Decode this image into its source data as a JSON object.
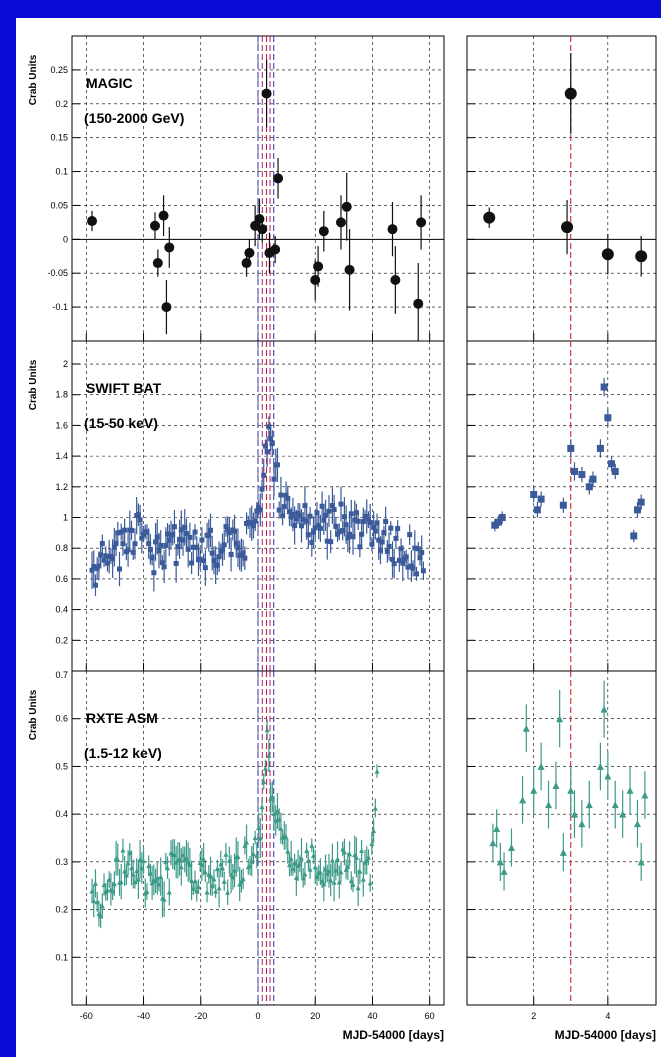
{
  "colors": {
    "frame": "#0a0ad6",
    "magic": "#111111",
    "swift": "#3a5a9a",
    "rxte": "#3c9a88",
    "marker_red": "#c41616",
    "marker_blue": "#3030a0",
    "marker_magenta": "#a02080"
  },
  "chart_data": {
    "type": "scatter",
    "shared_ylabel": "Crab Units",
    "xlabel": "MJD-54000 [days]",
    "grid": true,
    "columns": [
      {
        "id": "left",
        "xlim": [
          -65,
          65
        ],
        "xticks": [
          -60,
          -40,
          -20,
          0,
          20,
          40,
          60
        ]
      },
      {
        "id": "right",
        "xlim": [
          0.2,
          5.3
        ],
        "xticks": [
          2,
          4
        ]
      }
    ],
    "vlines": {
      "left": [
        {
          "x": 0,
          "color": "marker_blue"
        },
        {
          "x": 1.5,
          "color": "marker_magenta"
        },
        {
          "x": 3.0,
          "color": "marker_red"
        },
        {
          "x": 4.2,
          "color": "marker_magenta"
        },
        {
          "x": 5.5,
          "color": "marker_blue"
        }
      ],
      "right": [
        {
          "x": 3.0,
          "color": "marker_red"
        }
      ]
    },
    "panels": [
      {
        "id": "magic",
        "title": "MAGIC",
        "subtitle": "(150-2000 GeV)",
        "ylim": [
          -0.15,
          0.3
        ],
        "yticks": [
          -0.1,
          -0.05,
          0,
          0.05,
          0.1,
          0.15,
          0.2,
          0.25
        ],
        "ytick_labels": [
          "-0.1",
          "-0.05",
          "0",
          "0.05",
          "0.1",
          "0.15",
          "0.2",
          "0.25"
        ],
        "zero_line": true,
        "marker": "dot",
        "color": "magic",
        "left_points": [
          [
            -58,
            0.027,
            0.015
          ],
          [
            -36,
            0.02,
            0.02
          ],
          [
            -35,
            -0.035,
            0.02
          ],
          [
            -33,
            0.035,
            0.03
          ],
          [
            -32,
            -0.1,
            0.04
          ],
          [
            -31,
            -0.012,
            0.03
          ],
          [
            -4,
            -0.035,
            0.02
          ],
          [
            -3,
            -0.02,
            0.02
          ],
          [
            -1,
            0.02,
            0.03
          ],
          [
            0.5,
            0.03,
            0.03
          ],
          [
            1.5,
            0.015,
            0.02
          ],
          [
            3,
            0.215,
            0.05
          ],
          [
            4,
            -0.02,
            0.03
          ],
          [
            6,
            -0.015,
            0.02
          ],
          [
            7,
            0.09,
            0.03
          ],
          [
            20,
            -0.06,
            0.03
          ],
          [
            21,
            -0.04,
            0.03
          ],
          [
            23,
            0.012,
            0.03
          ],
          [
            29,
            0.025,
            0.04
          ],
          [
            31,
            0.048,
            0.05
          ],
          [
            32,
            -0.045,
            0.06
          ],
          [
            47,
            0.015,
            0.04
          ],
          [
            48,
            -0.06,
            0.05
          ],
          [
            56,
            -0.095,
            0.06
          ],
          [
            57,
            0.025,
            0.04
          ]
        ],
        "right_points": [
          [
            0.8,
            0.032,
            0.015
          ],
          [
            2.9,
            0.018,
            0.04
          ],
          [
            3.0,
            0.215,
            0.06
          ],
          [
            4.0,
            -0.022,
            0.03
          ],
          [
            4.9,
            -0.025,
            0.03
          ]
        ]
      },
      {
        "id": "swift",
        "title": "SWIFT BAT",
        "subtitle": "(15-50 keV)",
        "ylim": [
          0,
          2.15
        ],
        "yticks": [
          0.2,
          0.4,
          0.6,
          0.8,
          1,
          1.2,
          1.4,
          1.6,
          1.8,
          2
        ],
        "ytick_labels": [
          "0.2",
          "0.4",
          "0.6",
          "0.8",
          "1",
          "1.2",
          "1.4",
          "1.6",
          "1.8",
          "2"
        ],
        "marker": "square",
        "color": "swift",
        "left_series_summary": [
          [
            -58,
            0.65
          ],
          [
            -55,
            0.72
          ],
          [
            -50,
            0.78
          ],
          [
            -45,
            0.8
          ],
          [
            -42,
            0.95
          ],
          [
            -40,
            0.8
          ],
          [
            -35,
            0.75
          ],
          [
            -30,
            0.82
          ],
          [
            -25,
            0.85
          ],
          [
            -20,
            0.78
          ],
          [
            -15,
            0.8
          ],
          [
            -10,
            0.82
          ],
          [
            -5,
            0.85
          ],
          [
            -2,
            0.9
          ],
          [
            0,
            1.0
          ],
          [
            2,
            1.3
          ],
          [
            3,
            1.5
          ],
          [
            4,
            1.6
          ],
          [
            5,
            1.4
          ],
          [
            8,
            1.1
          ],
          [
            12,
            1.05
          ],
          [
            15,
            1.0
          ],
          [
            20,
            0.95
          ],
          [
            25,
            0.95
          ],
          [
            30,
            0.98
          ],
          [
            35,
            0.9
          ],
          [
            40,
            0.9
          ],
          [
            45,
            0.85
          ],
          [
            50,
            0.8
          ],
          [
            55,
            0.75
          ],
          [
            58,
            0.72
          ]
        ],
        "right_points": [
          [
            0.95,
            0.95,
            0.04
          ],
          [
            1.05,
            0.97,
            0.04
          ],
          [
            1.15,
            1.0,
            0.04
          ],
          [
            2.0,
            1.15,
            0.05
          ],
          [
            2.1,
            1.05,
            0.05
          ],
          [
            2.2,
            1.12,
            0.05
          ],
          [
            2.8,
            1.08,
            0.05
          ],
          [
            3.0,
            1.45,
            0.06
          ],
          [
            3.1,
            1.3,
            0.06
          ],
          [
            3.3,
            1.28,
            0.05
          ],
          [
            3.5,
            1.2,
            0.05
          ],
          [
            3.6,
            1.25,
            0.05
          ],
          [
            3.8,
            1.45,
            0.06
          ],
          [
            3.9,
            1.85,
            0.06
          ],
          [
            4.0,
            1.65,
            0.06
          ],
          [
            4.1,
            1.35,
            0.05
          ],
          [
            4.2,
            1.3,
            0.05
          ],
          [
            4.7,
            0.88,
            0.04
          ],
          [
            4.8,
            1.05,
            0.05
          ],
          [
            4.9,
            1.1,
            0.05
          ]
        ]
      },
      {
        "id": "rxte",
        "title": "RXTE ASM",
        "subtitle": "(1.5-12 keV)",
        "ylim": [
          0,
          0.7
        ],
        "yticks": [
          0.1,
          0.2,
          0.3,
          0.4,
          0.5,
          0.6
        ],
        "ytick_labels": [
          "0.1",
          "0.2",
          "0.3",
          "0.4",
          "0.5",
          "0.6"
        ],
        "top_label": "0.7",
        "marker": "triangle",
        "color": "rxte",
        "left_series_summary": [
          [
            -58,
            0.25
          ],
          [
            -55,
            0.22
          ],
          [
            -50,
            0.28
          ],
          [
            -45,
            0.3
          ],
          [
            -40,
            0.27
          ],
          [
            -35,
            0.25
          ],
          [
            -30,
            0.28
          ],
          [
            -25,
            0.3
          ],
          [
            -20,
            0.27
          ],
          [
            -15,
            0.26
          ],
          [
            -10,
            0.28
          ],
          [
            -5,
            0.3
          ],
          [
            0,
            0.33
          ],
          [
            2,
            0.45
          ],
          [
            3,
            0.55
          ],
          [
            5,
            0.4
          ],
          [
            10,
            0.32
          ],
          [
            15,
            0.3
          ],
          [
            20,
            0.3
          ],
          [
            25,
            0.28
          ],
          [
            30,
            0.3
          ],
          [
            35,
            0.28
          ],
          [
            40,
            0.3
          ],
          [
            42,
            0.55
          ]
        ],
        "right_points": [
          [
            0.9,
            0.34,
            0.04
          ],
          [
            1.0,
            0.37,
            0.04
          ],
          [
            1.1,
            0.3,
            0.04
          ],
          [
            1.2,
            0.28,
            0.04
          ],
          [
            1.4,
            0.33,
            0.04
          ],
          [
            1.7,
            0.43,
            0.05
          ],
          [
            1.8,
            0.58,
            0.05
          ],
          [
            2.0,
            0.45,
            0.05
          ],
          [
            2.2,
            0.5,
            0.05
          ],
          [
            2.4,
            0.42,
            0.05
          ],
          [
            2.6,
            0.46,
            0.05
          ],
          [
            2.7,
            0.6,
            0.06
          ],
          [
            2.8,
            0.32,
            0.04
          ],
          [
            3.0,
            0.45,
            0.05
          ],
          [
            3.1,
            0.4,
            0.05
          ],
          [
            3.3,
            0.38,
            0.05
          ],
          [
            3.5,
            0.42,
            0.05
          ],
          [
            3.8,
            0.5,
            0.05
          ],
          [
            3.9,
            0.62,
            0.06
          ],
          [
            4.0,
            0.48,
            0.05
          ],
          [
            4.2,
            0.42,
            0.05
          ],
          [
            4.4,
            0.4,
            0.05
          ],
          [
            4.6,
            0.45,
            0.05
          ],
          [
            4.8,
            0.38,
            0.05
          ],
          [
            4.9,
            0.3,
            0.04
          ],
          [
            5.0,
            0.44,
            0.05
          ]
        ]
      }
    ]
  }
}
